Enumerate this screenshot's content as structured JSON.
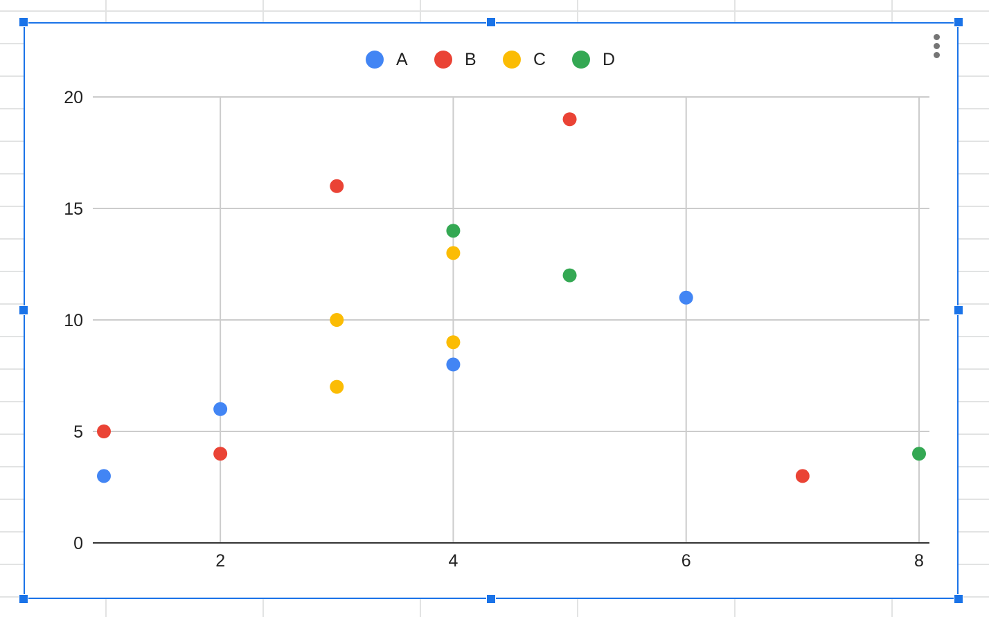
{
  "menu": {
    "icon": "more-vert-icon"
  },
  "colors": {
    "A": "#4285f4",
    "B": "#ea4335",
    "C": "#fbbc04",
    "D": "#34a853",
    "gridline": "#cccccc",
    "axis": "#333333",
    "selection": "#1a73e8"
  },
  "chart_data": {
    "type": "scatter",
    "title": "",
    "xlabel": "",
    "ylabel": "",
    "xlim": [
      1,
      8
    ],
    "ylim": [
      0,
      20
    ],
    "x_ticks": [
      2,
      4,
      6,
      8
    ],
    "y_ticks": [
      0,
      5,
      10,
      15,
      20
    ],
    "x_tick_labels": [
      "2",
      "4",
      "6",
      "8"
    ],
    "y_tick_labels": [
      "0",
      "5",
      "10",
      "15",
      "20"
    ],
    "grid": true,
    "legend_position": "top",
    "series": [
      {
        "name": "A",
        "color": "#4285f4",
        "points": [
          [
            1,
            3
          ],
          [
            2,
            6
          ],
          [
            4,
            8
          ],
          [
            6,
            11
          ]
        ]
      },
      {
        "name": "B",
        "color": "#ea4335",
        "points": [
          [
            1,
            5
          ],
          [
            2,
            4
          ],
          [
            3,
            16
          ],
          [
            5,
            19
          ],
          [
            7,
            3
          ]
        ]
      },
      {
        "name": "C",
        "color": "#fbbc04",
        "points": [
          [
            3,
            10
          ],
          [
            3,
            7
          ],
          [
            4,
            13
          ],
          [
            4,
            9
          ]
        ]
      },
      {
        "name": "D",
        "color": "#34a853",
        "points": [
          [
            4,
            14
          ],
          [
            5,
            12
          ],
          [
            8,
            4
          ]
        ]
      }
    ]
  }
}
